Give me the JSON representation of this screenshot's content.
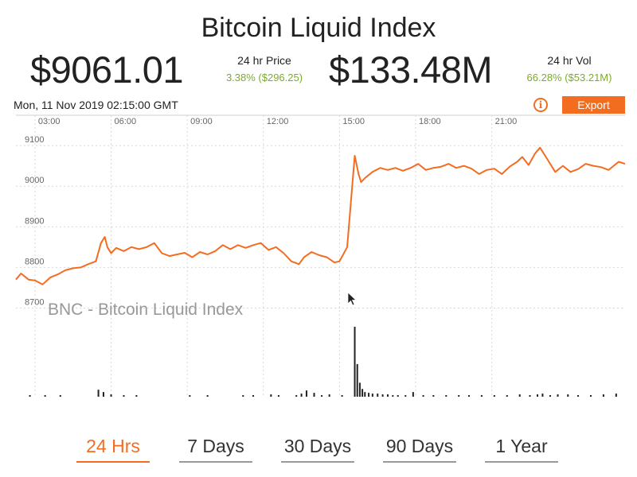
{
  "header": {
    "title": "Bitcoin Liquid Index",
    "price_value": "$9061.01",
    "price_label": "24 hr Price",
    "price_change": "3.38% ($296.25)",
    "volume_value": "$133.48M",
    "volume_label": "24 hr Vol",
    "volume_change": "66.28% ($53.21M)"
  },
  "toolbar": {
    "timestamp": "Mon, 11 Nov 2019 02:15:00 GMT",
    "info_icon": "i",
    "export_label": "Export"
  },
  "colors": {
    "accent": "#f36d21",
    "positive": "#7cab2c",
    "volume_bar": "#222222",
    "grid": "#d8d8d8"
  },
  "chart_data": {
    "type": "line",
    "watermark": "BNC - Bitcoin Liquid Index",
    "x_tick_labels": [
      "03:00",
      "06:00",
      "09:00",
      "12:00",
      "15:00",
      "18:00",
      "21:00"
    ],
    "x_ticks_hours": [
      3,
      6,
      9,
      12,
      15,
      18,
      21
    ],
    "x_range_hours": [
      2.25,
      26.25
    ],
    "y_tick_labels": [
      "9100",
      "9000",
      "8900",
      "8800",
      "8700"
    ],
    "y_ticks": [
      9100,
      9000,
      8900,
      8800,
      8700
    ],
    "ylim": [
      8650,
      9155
    ],
    "grid": true,
    "price_series": {
      "x_hours": [
        2.25,
        2.45,
        2.75,
        3.0,
        3.3,
        3.6,
        3.9,
        4.2,
        4.5,
        4.8,
        5.1,
        5.4,
        5.6,
        5.75,
        5.85,
        6.0,
        6.2,
        6.5,
        6.8,
        7.1,
        7.4,
        7.7,
        8.0,
        8.3,
        8.6,
        8.9,
        9.2,
        9.5,
        9.8,
        10.1,
        10.4,
        10.7,
        11.0,
        11.3,
        11.6,
        11.9,
        12.2,
        12.5,
        12.8,
        13.1,
        13.4,
        13.6,
        13.9,
        14.2,
        14.5,
        14.8,
        15.0,
        15.3,
        15.6,
        15.7,
        15.75,
        15.85,
        16.0,
        16.3,
        16.6,
        16.9,
        17.2,
        17.5,
        17.8,
        18.1,
        18.4,
        18.7,
        19.0,
        19.3,
        19.6,
        19.9,
        20.2,
        20.5,
        20.8,
        21.1,
        21.4,
        21.7,
        22.0,
        22.2,
        22.45,
        22.7,
        22.9,
        23.2,
        23.5,
        23.8,
        24.1,
        24.4,
        24.7,
        25.0,
        25.3,
        25.6,
        26.0,
        26.25
      ],
      "values": [
        8770,
        8785,
        8770,
        8768,
        8758,
        8775,
        8783,
        8793,
        8798,
        8800,
        8808,
        8815,
        8860,
        8875,
        8850,
        8835,
        8848,
        8840,
        8850,
        8845,
        8850,
        8860,
        8835,
        8828,
        8832,
        8836,
        8825,
        8838,
        8832,
        8840,
        8855,
        8845,
        8855,
        8848,
        8855,
        8860,
        8843,
        8850,
        8835,
        8815,
        8808,
        8825,
        8838,
        8830,
        8825,
        8812,
        8815,
        8850,
        9075,
        9045,
        9030,
        9010,
        9020,
        9035,
        9045,
        9040,
        9045,
        9038,
        9045,
        9055,
        9040,
        9045,
        9048,
        9055,
        9045,
        9050,
        9043,
        9030,
        9040,
        9043,
        9030,
        9048,
        9060,
        9072,
        9052,
        9080,
        9095,
        9065,
        9035,
        9050,
        9035,
        9042,
        9055,
        9050,
        9047,
        9040,
        9060,
        9055
      ]
    },
    "volume_series": {
      "x_hours": [
        2.8,
        3.4,
        4.0,
        5.5,
        5.7,
        6.0,
        6.5,
        7.0,
        9.1,
        9.8,
        11.2,
        11.6,
        12.3,
        12.6,
        13.3,
        13.5,
        13.7,
        14.0,
        14.3,
        14.6,
        15.1,
        15.6,
        15.7,
        15.8,
        15.9,
        16.0,
        16.15,
        16.3,
        16.5,
        16.7,
        16.9,
        17.1,
        17.3,
        17.6,
        17.9,
        18.3,
        18.7,
        19.2,
        19.7,
        20.1,
        20.6,
        21.1,
        21.6,
        22.1,
        22.5,
        22.8,
        23.0,
        23.3,
        23.6,
        24.0,
        24.4,
        24.9,
        25.4,
        25.9
      ],
      "values": [
        2,
        2,
        2,
        9,
        6,
        3,
        2,
        2,
        2,
        2,
        2,
        2,
        3,
        2,
        2,
        4,
        8,
        5,
        2,
        3,
        2,
        90,
        42,
        18,
        10,
        6,
        5,
        4,
        4,
        3,
        3,
        2,
        2,
        2,
        6,
        2,
        2,
        2,
        2,
        2,
        2,
        2,
        2,
        3,
        2,
        3,
        4,
        2,
        3,
        3,
        2,
        2,
        3,
        4
      ],
      "ylim": [
        0,
        90
      ]
    }
  },
  "range_selector": {
    "options": [
      "24 Hrs",
      "7 Days",
      "30 Days",
      "90 Days",
      "1 Year"
    ],
    "selected": "24 Hrs"
  }
}
